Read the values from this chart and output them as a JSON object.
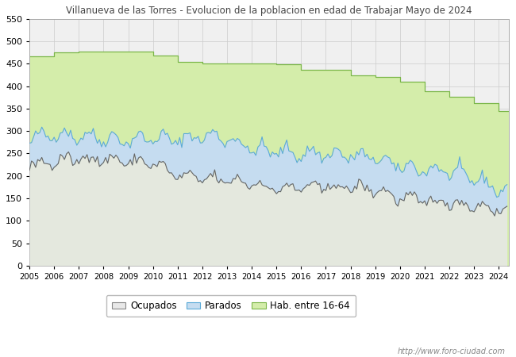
{
  "title": "Villanueva de las Torres - Evolucion de la poblacion en edad de Trabajar Mayo de 2024",
  "ylim": [
    0,
    550
  ],
  "yticks": [
    0,
    50,
    100,
    150,
    200,
    250,
    300,
    350,
    400,
    450,
    500,
    550
  ],
  "years": [
    2005,
    2006,
    2007,
    2008,
    2009,
    2010,
    2011,
    2012,
    2013,
    2014,
    2015,
    2016,
    2017,
    2018,
    2019,
    2020,
    2021,
    2022,
    2023,
    2024
  ],
  "hab_16_64": [
    467,
    476,
    477,
    478,
    477,
    469,
    454,
    451,
    451,
    450,
    449,
    437,
    436,
    424,
    421,
    410,
    388,
    376,
    363,
    345
  ],
  "parados_upper_annual": [
    280,
    295,
    290,
    285,
    280,
    285,
    280,
    290,
    285,
    260,
    255,
    250,
    250,
    245,
    240,
    220,
    215,
    210,
    195,
    170
  ],
  "ocupados_annual": [
    225,
    230,
    240,
    238,
    232,
    230,
    200,
    195,
    190,
    185,
    170,
    175,
    175,
    175,
    170,
    150,
    145,
    140,
    135,
    125
  ],
  "color_hab": "#d4edaa",
  "color_hab_line": "#7ab648",
  "color_parados_fill": "#c5dcf0",
  "color_parados_line": "#5baad8",
  "color_ocupados_fill": "#e8e8e8",
  "color_ocupados_line": "#666666",
  "url": "http://www.foro-ciudad.com",
  "bg_color": "#f0f0f0",
  "legend_labels": [
    "Ocupados",
    "Parados",
    "Hab. entre 16-64"
  ],
  "title_color": "#444444",
  "grid_color": "#cccccc",
  "months_total": 233
}
